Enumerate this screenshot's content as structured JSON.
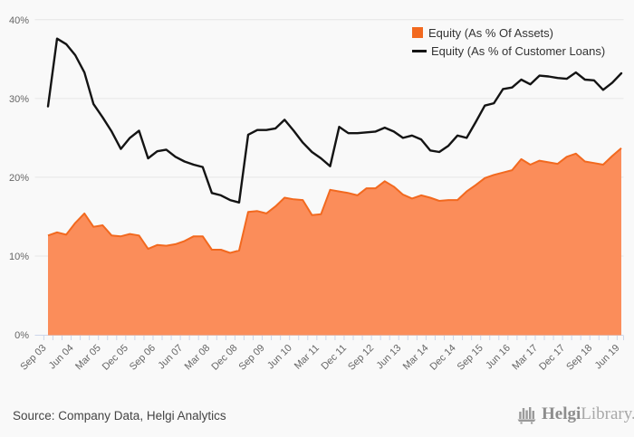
{
  "chart_data": {
    "type": "area",
    "title": "",
    "x_labels": [
      "Sep 03",
      "Jun 04",
      "Mar 05",
      "Dec 05",
      "Sep 06",
      "Jun 07",
      "Mar 08",
      "Dec 08",
      "Sep 09",
      "Jun 10",
      "Mar 11",
      "Dec 11",
      "Sep 12",
      "Jun 13",
      "Mar 14",
      "Dec 14",
      "Sep 15",
      "Jun 16",
      "Mar 17",
      "Dec 17",
      "Sep 18",
      "Jun 19"
    ],
    "label_every_n_points": 3,
    "ylim": [
      0,
      40
    ],
    "yticks": [
      0,
      10,
      20,
      30,
      40
    ],
    "ytick_labels": [
      "0%",
      "10%",
      "20%",
      "30%",
      "40%"
    ],
    "grid": "horizontal",
    "legend_position": "top-right",
    "series": [
      {
        "name": "Equity (As % Of Assets)",
        "type": "area",
        "color": "#f2691f",
        "fill": "#fb8d5a",
        "values": [
          12.6,
          13.0,
          12.7,
          14.2,
          15.4,
          13.7,
          13.9,
          12.6,
          12.5,
          12.8,
          12.6,
          10.9,
          11.4,
          11.3,
          11.5,
          11.9,
          12.5,
          12.5,
          10.8,
          10.8,
          10.4,
          10.7,
          15.6,
          15.7,
          15.4,
          16.3,
          17.4,
          17.2,
          17.1,
          15.2,
          15.3,
          18.4,
          18.2,
          18.0,
          17.7,
          18.6,
          18.6,
          19.5,
          18.8,
          17.8,
          17.3,
          17.7,
          17.4,
          17.0,
          17.1,
          17.1,
          18.2,
          19.0,
          19.9,
          20.3,
          20.6,
          20.9,
          22.3,
          21.6,
          22.1,
          21.9,
          21.7,
          22.6,
          23.0,
          22.0,
          21.8,
          21.6,
          22.7,
          23.7
        ]
      },
      {
        "name": "Equity (As % of Customer Loans)",
        "type": "line",
        "color": "#141414",
        "values": [
          29.0,
          37.6,
          36.9,
          35.5,
          33.3,
          29.3,
          27.6,
          25.8,
          23.6,
          25.0,
          25.9,
          22.4,
          23.3,
          23.5,
          22.6,
          22.0,
          21.6,
          21.3,
          18.0,
          17.7,
          17.1,
          16.8,
          25.4,
          26.0,
          26.0,
          26.2,
          27.3,
          25.9,
          24.4,
          23.2,
          22.4,
          21.4,
          26.4,
          25.6,
          25.6,
          25.7,
          25.8,
          26.3,
          25.8,
          25.0,
          25.3,
          24.8,
          23.4,
          23.2,
          24.0,
          25.3,
          25.0,
          27.0,
          29.1,
          29.4,
          31.2,
          31.4,
          32.4,
          31.8,
          32.9,
          32.8,
          32.6,
          32.5,
          33.3,
          32.4,
          32.3,
          31.1,
          32.0,
          33.2
        ]
      }
    ]
  },
  "legend": {
    "items": [
      {
        "label": "Equity (As % Of Assets)",
        "swatch": "square",
        "color": "#f2691f"
      },
      {
        "label": "Equity (As % of Customer Loans)",
        "swatch": "line",
        "color": "#141414"
      }
    ]
  },
  "footer": {
    "source_text": "Source: Company Data, Helgi Analytics",
    "logo_brand": "Helgi",
    "logo_suffix": "Library."
  },
  "colors": {
    "background": "#f9f9f9",
    "gridline": "#e6e6e6",
    "axis_line": "#ccd6eb",
    "tick": "#ccd6eb",
    "axis_label": "#666666",
    "legend_text": "#333333",
    "source_text": "#444444",
    "logo": "#9a9a9a"
  }
}
